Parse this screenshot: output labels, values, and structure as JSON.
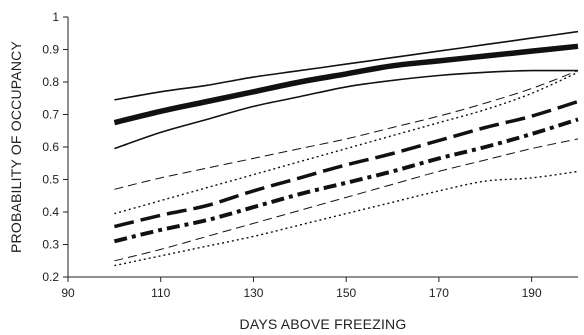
{
  "chart_data": {
    "type": "line",
    "title": "",
    "xlabel": "DAYS ABOVE FREEZING",
    "ylabel": "PROBABILITY OF OCCUPANCY",
    "xlim": [
      90,
      200
    ],
    "ylim": [
      0.2,
      1.0
    ],
    "xticks": [
      90,
      110,
      130,
      150,
      170,
      190
    ],
    "yticks": [
      0.2,
      0.3,
      0.4,
      0.5,
      0.6,
      0.7,
      0.8,
      0.9,
      1.0
    ],
    "ytick_labels": [
      "0.2",
      "0.3",
      "0.4",
      "0.5",
      "0.6",
      "0.7",
      "0.8",
      "0.9",
      "1"
    ],
    "grid": false,
    "legend": "none",
    "x": [
      100,
      110,
      120,
      130,
      140,
      150,
      160,
      170,
      180,
      190,
      200
    ],
    "series": [
      {
        "style": "thick-solid",
        "values": [
          0.675,
          0.71,
          0.74,
          0.77,
          0.8,
          0.825,
          0.85,
          0.865,
          0.88,
          0.895,
          0.91
        ]
      },
      {
        "style": "thin-solid-upper",
        "values": [
          0.745,
          0.77,
          0.79,
          0.815,
          0.835,
          0.855,
          0.875,
          0.895,
          0.915,
          0.935,
          0.955
        ]
      },
      {
        "style": "thin-solid-lower",
        "values": [
          0.595,
          0.645,
          0.685,
          0.725,
          0.755,
          0.785,
          0.805,
          0.82,
          0.83,
          0.835,
          0.835
        ]
      },
      {
        "style": "thick-dashed",
        "values": [
          0.355,
          0.39,
          0.42,
          0.465,
          0.505,
          0.545,
          0.58,
          0.62,
          0.66,
          0.695,
          0.74
        ]
      },
      {
        "style": "thin-dashed-upper",
        "values": [
          0.47,
          0.505,
          0.535,
          0.565,
          0.595,
          0.625,
          0.66,
          0.695,
          0.735,
          0.78,
          0.835
        ]
      },
      {
        "style": "thin-dashed-lower",
        "values": [
          0.25,
          0.285,
          0.325,
          0.365,
          0.405,
          0.445,
          0.485,
          0.525,
          0.56,
          0.595,
          0.625
        ]
      },
      {
        "style": "thick-dashdot",
        "values": [
          0.31,
          0.345,
          0.375,
          0.415,
          0.455,
          0.49,
          0.525,
          0.565,
          0.6,
          0.64,
          0.685
        ]
      },
      {
        "style": "thin-dotted-upper",
        "values": [
          0.395,
          0.435,
          0.475,
          0.515,
          0.555,
          0.595,
          0.635,
          0.675,
          0.715,
          0.765,
          0.83
        ]
      },
      {
        "style": "thin-dotted-lower",
        "values": [
          0.235,
          0.265,
          0.295,
          0.325,
          0.36,
          0.395,
          0.43,
          0.465,
          0.495,
          0.505,
          0.525
        ]
      }
    ]
  }
}
